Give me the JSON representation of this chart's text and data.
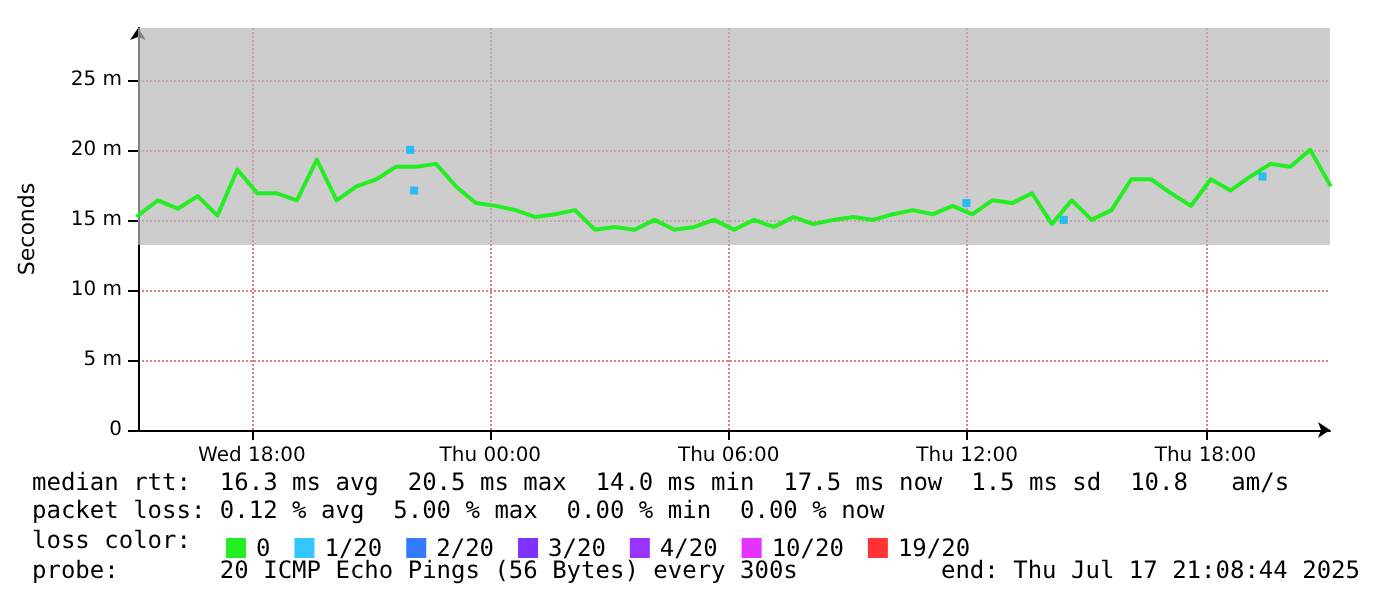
{
  "chart_data": {
    "type": "line",
    "ylabel": "Seconds",
    "legend_title": "loss color:",
    "legend": "bottom",
    "grid": true,
    "marker": "none",
    "line_style": "solid",
    "xlim": [
      "2025-07-16T15:08",
      "2025-07-17T21:08"
    ],
    "xticks": [
      {
        "value": "2025-07-16T18:00",
        "label": "Wed 18:00"
      },
      {
        "value": "2025-07-17T00:00",
        "label": "Thu 00:00"
      },
      {
        "value": "2025-07-17T06:00",
        "label": "Thu 06:00"
      },
      {
        "value": "2025-07-17T12:00",
        "label": "Thu 12:00"
      },
      {
        "value": "2025-07-17T18:00",
        "label": "Thu 18:00"
      }
    ],
    "ylim": [
      0,
      28.7
    ],
    "yticks": [
      {
        "value": 0,
        "label": "0"
      },
      {
        "value": 5,
        "label": "5 m"
      },
      {
        "value": 10,
        "label": "10 m"
      },
      {
        "value": 15,
        "label": "15 m"
      },
      {
        "value": 20,
        "label": "20 m"
      },
      {
        "value": 25,
        "label": "25 m"
      }
    ],
    "x": [
      "2025-07-16T15:08",
      "2025-07-16T15:38",
      "2025-07-16T16:08",
      "2025-07-16T16:38",
      "2025-07-16T17:08",
      "2025-07-16T17:38",
      "2025-07-16T18:08",
      "2025-07-16T18:38",
      "2025-07-16T19:08",
      "2025-07-16T19:38",
      "2025-07-16T20:08",
      "2025-07-16T20:38",
      "2025-07-16T21:08",
      "2025-07-16T21:38",
      "2025-07-16T22:08",
      "2025-07-16T22:38",
      "2025-07-16T23:08",
      "2025-07-16T23:38",
      "2025-07-17T00:08",
      "2025-07-17T00:38",
      "2025-07-17T01:08",
      "2025-07-17T01:38",
      "2025-07-17T02:08",
      "2025-07-17T02:38",
      "2025-07-17T03:08",
      "2025-07-17T03:38",
      "2025-07-17T04:08",
      "2025-07-17T04:38",
      "2025-07-17T05:08",
      "2025-07-17T05:38",
      "2025-07-17T06:08",
      "2025-07-17T06:38",
      "2025-07-17T07:08",
      "2025-07-17T07:38",
      "2025-07-17T08:08",
      "2025-07-17T08:38",
      "2025-07-17T09:08",
      "2025-07-17T09:38",
      "2025-07-17T10:08",
      "2025-07-17T10:38",
      "2025-07-17T11:08",
      "2025-07-17T11:38",
      "2025-07-17T12:08",
      "2025-07-17T12:38",
      "2025-07-17T13:08",
      "2025-07-17T13:38",
      "2025-07-17T14:08",
      "2025-07-17T14:38",
      "2025-07-17T15:08",
      "2025-07-17T15:38",
      "2025-07-17T16:08",
      "2025-07-17T16:38",
      "2025-07-17T17:08",
      "2025-07-17T17:38",
      "2025-07-17T18:08",
      "2025-07-17T18:38",
      "2025-07-17T19:08",
      "2025-07-17T19:38",
      "2025-07-17T20:08",
      "2025-07-17T20:38",
      "2025-07-17T21:08"
    ],
    "series": [
      {
        "name": "0",
        "color": "#22ee22",
        "values": [
          15.3,
          16.4,
          15.8,
          16.7,
          15.3,
          18.6,
          16.9,
          16.9,
          16.4,
          19.3,
          16.4,
          17.4,
          17.9,
          18.8,
          18.8,
          19.0,
          17.4,
          16.2,
          16.0,
          15.7,
          15.2,
          15.4,
          15.7,
          14.3,
          14.5,
          14.3,
          15.0,
          14.3,
          14.5,
          15.0,
          14.3,
          15.0,
          14.5,
          15.2,
          14.7,
          15.0,
          15.2,
          15.0,
          15.4,
          15.7,
          15.4,
          16.0,
          15.4,
          16.4,
          16.2,
          16.9,
          14.7,
          16.4,
          15.0,
          15.7,
          17.9,
          17.9,
          16.9,
          16.0,
          17.9,
          17.1,
          18.1,
          19.0,
          18.8,
          20.0,
          17.5
        ],
        "lower": [
          13.2,
          13.2,
          13.2,
          13.2,
          13.2,
          13.2,
          13.2,
          13.2,
          13.2,
          13.2,
          13.2,
          13.2,
          13.2,
          13.2,
          13.2,
          13.2,
          13.2,
          13.2,
          13.2,
          13.2,
          13.2,
          13.2,
          13.2,
          13.2,
          13.2,
          13.2,
          13.2,
          13.2,
          13.2,
          13.2,
          13.2,
          13.2,
          13.2,
          13.2,
          13.2,
          13.2,
          13.2,
          13.2,
          13.2,
          13.2,
          13.2,
          13.2,
          13.2,
          13.2,
          13.2,
          13.2,
          13.2,
          13.2,
          13.2,
          13.2,
          13.2,
          13.2,
          13.2,
          13.2,
          13.2,
          13.2,
          13.2,
          13.2,
          13.2,
          13.2,
          13.2
        ],
        "upper": [
          28.7,
          28.7,
          28.7,
          28.7,
          28.7,
          28.7,
          28.7,
          28.7,
          28.7,
          28.7,
          28.7,
          28.7,
          28.7,
          28.7,
          28.7,
          28.7,
          28.7,
          28.7,
          28.7,
          28.7,
          28.7,
          28.7,
          28.7,
          28.7,
          28.7,
          28.7,
          28.7,
          28.7,
          28.7,
          28.7,
          28.7,
          28.7,
          28.7,
          28.7,
          28.7,
          28.7,
          28.7,
          28.7,
          28.7,
          28.7,
          28.7,
          28.7,
          28.7,
          28.7,
          28.7,
          28.7,
          28.7,
          28.7,
          28.7,
          28.7,
          28.7,
          28.7,
          28.7,
          28.7,
          28.7,
          28.7,
          28.7,
          28.7,
          28.7,
          28.7,
          28.7
        ]
      },
      {
        "name": "1/20",
        "color": "#00b8ff",
        "type": "scatter",
        "marker": "square",
        "x": [
          "2025-07-16T21:59",
          "2025-07-16T22:05",
          "2025-07-17T11:59",
          "2025-07-17T14:26",
          "2025-07-17T19:26"
        ],
        "values": [
          20.0,
          17.1,
          16.2,
          15.0,
          18.1
        ]
      },
      {
        "name": "2/20",
        "color": "#0059ff",
        "type": "scatter",
        "marker": "square",
        "values": [
          null,
          null,
          null,
          null,
          null,
          null,
          null,
          null,
          null,
          null,
          null,
          null,
          null,
          null,
          null,
          null,
          null,
          null,
          null,
          null,
          null,
          null,
          null,
          null,
          null,
          null,
          null,
          null,
          null,
          null,
          null,
          null,
          null,
          null,
          null,
          null,
          null,
          null,
          null,
          null,
          null,
          null,
          null,
          null,
          null,
          null,
          null,
          null,
          null,
          null,
          null,
          null,
          null,
          null,
          null,
          null,
          null,
          null,
          null,
          null,
          null
        ]
      },
      {
        "name": "3/20",
        "color": "#5e00ff",
        "type": "scatter",
        "marker": "square",
        "values": [
          null,
          null,
          null,
          null,
          null,
          null,
          null,
          null,
          null,
          null,
          null,
          null,
          null,
          null,
          null,
          null,
          null,
          null,
          null,
          null,
          null,
          null,
          null,
          null,
          null,
          null,
          null,
          null,
          null,
          null,
          null,
          null,
          null,
          null,
          null,
          null,
          null,
          null,
          null,
          null,
          null,
          null,
          null,
          null,
          null,
          null,
          null,
          null,
          null,
          null,
          null,
          null,
          null,
          null,
          null,
          null,
          null,
          null,
          null,
          null,
          null
        ]
      },
      {
        "name": "4/20",
        "color": "#7e00ff",
        "type": "scatter",
        "marker": "square",
        "values": [
          null,
          null,
          null,
          null,
          null,
          null,
          null,
          null,
          null,
          null,
          null,
          null,
          null,
          null,
          null,
          null,
          null,
          null,
          null,
          null,
          null,
          null,
          null,
          null,
          null,
          null,
          null,
          null,
          null,
          null,
          null,
          null,
          null,
          null,
          null,
          null,
          null,
          null,
          null,
          null,
          null,
          null,
          null,
          null,
          null,
          null,
          null,
          null,
          null,
          null,
          null,
          null,
          null,
          null,
          null,
          null,
          null,
          null,
          null,
          null,
          null
        ]
      },
      {
        "name": "10/20",
        "color": "#dd00ff",
        "type": "scatter",
        "marker": "square",
        "values": [
          null,
          null,
          null,
          null,
          null,
          null,
          null,
          null,
          null,
          null,
          null,
          null,
          null,
          null,
          null,
          null,
          null,
          null,
          null,
          null,
          null,
          null,
          null,
          null,
          null,
          null,
          null,
          null,
          null,
          null,
          null,
          null,
          null,
          null,
          null,
          null,
          null,
          null,
          null,
          null,
          null,
          null,
          null,
          null,
          null,
          null,
          null,
          null,
          null,
          null,
          null,
          null,
          null,
          null,
          null,
          null,
          null,
          null,
          null,
          null,
          null
        ]
      },
      {
        "name": "19/20",
        "color": "#ff0000",
        "type": "scatter",
        "marker": "square",
        "values": [
          null,
          null,
          null,
          null,
          null,
          null,
          null,
          null,
          null,
          null,
          null,
          null,
          null,
          null,
          null,
          null,
          null,
          null,
          null,
          null,
          null,
          null,
          null,
          null,
          null,
          null,
          null,
          null,
          null,
          null,
          null,
          null,
          null,
          null,
          null,
          null,
          null,
          null,
          null,
          null,
          null,
          null,
          null,
          null,
          null,
          null,
          null,
          null,
          null,
          null,
          null,
          null,
          null,
          null,
          null,
          null,
          null,
          null,
          null,
          null,
          null
        ]
      }
    ],
    "annotations": [
      "median rtt:  16.3 ms avg  20.5 ms max  14.0 ms min  17.5 ms now  1.5 ms sd  10.8   am/s",
      "packet loss: 0.12 % avg  5.00 % max  0.00 % min  0.00 % now",
      "probe:       20 ICMP Echo Pings (56 Bytes) every 300s",
      "end: Thu Jul 17 21:08:44 2025"
    ]
  }
}
